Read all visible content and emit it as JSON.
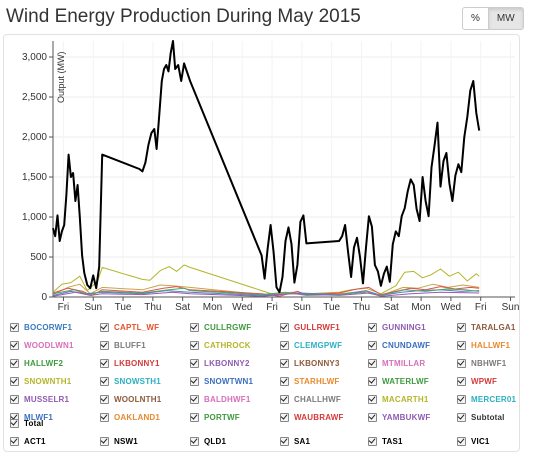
{
  "header": {
    "title": "Wind Energy Production During May 2015",
    "toggle_percent": "%",
    "toggle_mw": "MW"
  },
  "chart_data": {
    "type": "line",
    "ylabel": "Output (MW)",
    "ylim": [
      0,
      3200
    ],
    "yticks": [
      0,
      500,
      1000,
      1500,
      2000,
      2500,
      3000
    ],
    "ytick_labels": [
      "0",
      "500",
      "1,000",
      "1,500",
      "2,000",
      "2,500",
      "3,000"
    ],
    "xlim": [
      0,
      31
    ],
    "xticks": [
      {
        "x": 0.7,
        "label": "Fri"
      },
      {
        "x": 2.7,
        "label": "Sun"
      },
      {
        "x": 4.7,
        "label": "Tue"
      },
      {
        "x": 6.7,
        "label": "Thu"
      },
      {
        "x": 8.7,
        "label": "Sat"
      },
      {
        "x": 10.7,
        "label": "Mon"
      },
      {
        "x": 12.7,
        "label": "Wed"
      },
      {
        "x": 14.7,
        "label": "Fri"
      },
      {
        "x": 16.7,
        "label": "Sun"
      },
      {
        "x": 18.7,
        "label": "Tue"
      },
      {
        "x": 20.7,
        "label": "Thu"
      },
      {
        "x": 22.7,
        "label": "Sat"
      },
      {
        "x": 24.7,
        "label": "Mon"
      },
      {
        "x": 26.7,
        "label": "Wed"
      },
      {
        "x": 28.7,
        "label": "Fri"
      },
      {
        "x": 30.7,
        "label": "Sun"
      }
    ],
    "grid": true,
    "series": [
      {
        "name": "Total",
        "color": "#000000",
        "width": 2,
        "points": [
          [
            0,
            860
          ],
          [
            0.15,
            760
          ],
          [
            0.3,
            1020
          ],
          [
            0.45,
            700
          ],
          [
            0.6,
            820
          ],
          [
            0.75,
            900
          ],
          [
            0.9,
            1280
          ],
          [
            1.05,
            1780
          ],
          [
            1.2,
            1500
          ],
          [
            1.35,
            1550
          ],
          [
            1.5,
            1200
          ],
          [
            1.65,
            1400
          ],
          [
            1.8,
            1000
          ],
          [
            1.95,
            520
          ],
          [
            2.1,
            300
          ],
          [
            2.3,
            150
          ],
          [
            2.5,
            110
          ],
          [
            2.7,
            270
          ],
          [
            2.9,
            110
          ],
          [
            3.1,
            380
          ],
          [
            3.3,
            1780
          ],
          [
            5.8,
            1600
          ],
          [
            6.0,
            1570
          ],
          [
            6.2,
            1680
          ],
          [
            6.4,
            1900
          ],
          [
            6.6,
            2050
          ],
          [
            6.8,
            2100
          ],
          [
            6.95,
            1850
          ],
          [
            7.1,
            2200
          ],
          [
            7.3,
            2700
          ],
          [
            7.45,
            2850
          ],
          [
            7.6,
            2900
          ],
          [
            7.75,
            2820
          ],
          [
            7.9,
            3050
          ],
          [
            8.05,
            3200
          ],
          [
            8.2,
            2850
          ],
          [
            8.4,
            2900
          ],
          [
            8.6,
            2700
          ],
          [
            8.8,
            2920
          ],
          [
            9.2,
            2700
          ],
          [
            14.0,
            520
          ],
          [
            14.2,
            230
          ],
          [
            14.4,
            600
          ],
          [
            14.6,
            900
          ],
          [
            14.8,
            560
          ],
          [
            15.0,
            120
          ],
          [
            15.2,
            60
          ],
          [
            15.4,
            250
          ],
          [
            15.6,
            700
          ],
          [
            15.8,
            870
          ],
          [
            16.0,
            660
          ],
          [
            16.2,
            180
          ],
          [
            16.4,
            400
          ],
          [
            16.6,
            940
          ],
          [
            16.8,
            1020
          ],
          [
            17.0,
            670
          ],
          [
            19.2,
            700
          ],
          [
            19.4,
            760
          ],
          [
            19.6,
            900
          ],
          [
            19.8,
            560
          ],
          [
            20.0,
            250
          ],
          [
            20.2,
            620
          ],
          [
            20.4,
            740
          ],
          [
            20.6,
            500
          ],
          [
            20.8,
            170
          ],
          [
            21.0,
            620
          ],
          [
            21.2,
            1010
          ],
          [
            21.4,
            880
          ],
          [
            21.6,
            400
          ],
          [
            21.8,
            320
          ],
          [
            22.0,
            140
          ],
          [
            22.2,
            290
          ],
          [
            22.4,
            380
          ],
          [
            22.6,
            190
          ],
          [
            22.8,
            660
          ],
          [
            23.0,
            820
          ],
          [
            23.2,
            760
          ],
          [
            23.4,
            1010
          ],
          [
            23.6,
            1110
          ],
          [
            23.8,
            1320
          ],
          [
            24.0,
            1470
          ],
          [
            24.2,
            1400
          ],
          [
            24.4,
            1100
          ],
          [
            24.6,
            950
          ],
          [
            24.8,
            1500
          ],
          [
            25.0,
            1200
          ],
          [
            25.2,
            1010
          ],
          [
            25.4,
            1620
          ],
          [
            25.6,
            1890
          ],
          [
            25.8,
            2180
          ],
          [
            26.0,
            1380
          ],
          [
            26.2,
            1700
          ],
          [
            26.4,
            1800
          ],
          [
            26.6,
            1420
          ],
          [
            26.8,
            1200
          ],
          [
            27.0,
            1520
          ],
          [
            27.2,
            1660
          ],
          [
            27.4,
            1560
          ],
          [
            27.6,
            2000
          ],
          [
            27.8,
            2250
          ],
          [
            28.0,
            2580
          ],
          [
            28.2,
            2700
          ],
          [
            28.4,
            2300
          ],
          [
            28.6,
            2080
          ]
        ]
      },
      {
        "name": "VIC1",
        "color": "#b5b52b",
        "width": 1,
        "points": [
          [
            0,
            60
          ],
          [
            0.6,
            160
          ],
          [
            1.2,
            180
          ],
          [
            1.8,
            260
          ],
          [
            2.3,
            80
          ],
          [
            3.0,
            200
          ],
          [
            3.3,
            370
          ],
          [
            6.0,
            220
          ],
          [
            6.5,
            210
          ],
          [
            7.2,
            330
          ],
          [
            7.8,
            380
          ],
          [
            8.3,
            320
          ],
          [
            8.8,
            400
          ],
          [
            9.2,
            370
          ],
          [
            14.0,
            80
          ],
          [
            15.0,
            20
          ],
          [
            16.0,
            60
          ],
          [
            17.0,
            40
          ],
          [
            19.2,
            60
          ],
          [
            20.0,
            90
          ],
          [
            21.0,
            110
          ],
          [
            22.0,
            40
          ],
          [
            23.0,
            140
          ],
          [
            23.6,
            310
          ],
          [
            24.2,
            320
          ],
          [
            24.8,
            240
          ],
          [
            25.4,
            280
          ],
          [
            26.0,
            350
          ],
          [
            26.6,
            260
          ],
          [
            27.2,
            310
          ],
          [
            27.8,
            200
          ],
          [
            28.4,
            290
          ],
          [
            28.6,
            260
          ]
        ]
      },
      {
        "name": "SA1",
        "color": "#c9a24a",
        "width": 1,
        "points": [
          [
            0,
            30
          ],
          [
            1.0,
            120
          ],
          [
            1.8,
            160
          ],
          [
            2.5,
            40
          ],
          [
            3.3,
            120
          ],
          [
            6.0,
            90
          ],
          [
            7.2,
            150
          ],
          [
            8.0,
            140
          ],
          [
            9.2,
            120
          ],
          [
            14.0,
            30
          ],
          [
            16.0,
            50
          ],
          [
            17.0,
            30
          ],
          [
            19.2,
            40
          ],
          [
            21.0,
            70
          ],
          [
            22.0,
            20
          ],
          [
            23.5,
            120
          ],
          [
            24.5,
            110
          ],
          [
            25.5,
            160
          ],
          [
            26.5,
            120
          ],
          [
            27.5,
            150
          ],
          [
            28.6,
            120
          ]
        ]
      },
      {
        "name": "NSW1",
        "color": "#e05050",
        "width": 1,
        "points": [
          [
            0,
            50
          ],
          [
            1.0,
            110
          ],
          [
            2.0,
            70
          ],
          [
            2.6,
            20
          ],
          [
            3.3,
            90
          ],
          [
            6.0,
            60
          ],
          [
            7.4,
            110
          ],
          [
            8.3,
            130
          ],
          [
            9.2,
            90
          ],
          [
            14.0,
            40
          ],
          [
            15.2,
            10
          ],
          [
            16.4,
            70
          ],
          [
            17.0,
            30
          ],
          [
            19.2,
            50
          ],
          [
            20.4,
            100
          ],
          [
            21.2,
            120
          ],
          [
            22.0,
            30
          ],
          [
            23.0,
            70
          ],
          [
            24.0,
            110
          ],
          [
            25.0,
            90
          ],
          [
            26.0,
            130
          ],
          [
            27.0,
            100
          ],
          [
            28.0,
            120
          ],
          [
            28.6,
            110
          ]
        ]
      },
      {
        "name": "QLD1",
        "color": "#5a7fc0",
        "width": 1,
        "points": [
          [
            0,
            20
          ],
          [
            1.2,
            70
          ],
          [
            2.2,
            40
          ],
          [
            3.3,
            60
          ],
          [
            6.0,
            40
          ],
          [
            7.6,
            80
          ],
          [
            9.2,
            60
          ],
          [
            14.0,
            20
          ],
          [
            16.6,
            50
          ],
          [
            19.2,
            30
          ],
          [
            21.0,
            80
          ],
          [
            22.0,
            20
          ],
          [
            23.4,
            60
          ],
          [
            24.6,
            80
          ],
          [
            26.0,
            90
          ],
          [
            27.4,
            70
          ],
          [
            28.6,
            80
          ]
        ]
      },
      {
        "name": "TAS1",
        "color": "#4aa860",
        "width": 1,
        "points": [
          [
            0,
            40
          ],
          [
            1.4,
            90
          ],
          [
            2.4,
            30
          ],
          [
            3.3,
            70
          ],
          [
            6.0,
            50
          ],
          [
            7.8,
            90
          ],
          [
            8.8,
            110
          ],
          [
            9.2,
            80
          ],
          [
            14.0,
            30
          ],
          [
            15.6,
            60
          ],
          [
            17.0,
            20
          ],
          [
            19.2,
            30
          ],
          [
            20.8,
            60
          ],
          [
            22.0,
            20
          ],
          [
            23.6,
            90
          ],
          [
            25.0,
            70
          ],
          [
            26.4,
            100
          ],
          [
            27.6,
            90
          ],
          [
            28.6,
            70
          ]
        ]
      },
      {
        "name": "ACT1",
        "color": "#9b59b6",
        "width": 1,
        "points": [
          [
            0,
            10
          ],
          [
            1.5,
            60
          ],
          [
            2.5,
            20
          ],
          [
            3.3,
            40
          ],
          [
            6.0,
            30
          ],
          [
            8.0,
            60
          ],
          [
            9.2,
            40
          ],
          [
            14.0,
            10
          ],
          [
            16.0,
            40
          ],
          [
            19.2,
            20
          ],
          [
            21.2,
            50
          ],
          [
            22.0,
            10
          ],
          [
            24.0,
            40
          ],
          [
            26.0,
            60
          ],
          [
            28.6,
            50
          ]
        ]
      }
    ]
  },
  "legend": {
    "items": [
      {
        "label": "BOCORWF1",
        "color": "#3a7bbf"
      },
      {
        "label": "CAPTL_WF",
        "color": "#e0532a"
      },
      {
        "label": "CULLRGWF",
        "color": "#3e9a3e"
      },
      {
        "label": "GULLRWF1",
        "color": "#d43a3a"
      },
      {
        "label": "GUNNING1",
        "color": "#8e5cb0"
      },
      {
        "label": "TARALGA1",
        "color": "#8c5a3c"
      },
      {
        "label": "WOODLWN1",
        "color": "#d670b8"
      },
      {
        "label": "BLUFF1",
        "color": "#7a7a7a"
      },
      {
        "label": "CATHROCK",
        "color": "#b5b52b"
      },
      {
        "label": "CLEMGPWF",
        "color": "#2bb0c2"
      },
      {
        "label": "CNUNDAWF",
        "color": "#3a6fbf"
      },
      {
        "label": "HALLWF1",
        "color": "#e8892e"
      },
      {
        "label": "HALLWF2",
        "color": "#3e9a3e"
      },
      {
        "label": "LKBONNY1",
        "color": "#d43a3a"
      },
      {
        "label": "LKBONNY2",
        "color": "#8e5cb0"
      },
      {
        "label": "LKBONNY3",
        "color": "#8c5a3c"
      },
      {
        "label": "MTMILLAR",
        "color": "#d670b8"
      },
      {
        "label": "NBHWF1",
        "color": "#7a7a7a"
      },
      {
        "label": "SNOWNTH1",
        "color": "#b5b52b"
      },
      {
        "label": "SNOWSTH1",
        "color": "#2bb0c2"
      },
      {
        "label": "SNOWTWN1",
        "color": "#3a6fbf"
      },
      {
        "label": "STARHLWF",
        "color": "#e8892e"
      },
      {
        "label": "WATERLWF",
        "color": "#3e9a3e"
      },
      {
        "label": "WPWF",
        "color": "#d43a3a"
      },
      {
        "label": "MUSSELR1",
        "color": "#8e5cb0"
      },
      {
        "label": "WOOLNTH1",
        "color": "#8c5a3c"
      },
      {
        "label": "BALDHWF1",
        "color": "#d670b8"
      },
      {
        "label": "CHALLHWF",
        "color": "#7a7a7a"
      },
      {
        "label": "MACARTH1",
        "color": "#b5b52b"
      },
      {
        "label": "MERCER01",
        "color": "#2bb0c2"
      },
      {
        "label": "MLWF1",
        "color": "#3a6fbf"
      },
      {
        "label": "OAKLAND1",
        "color": "#e8892e"
      },
      {
        "label": "PORTWF",
        "color": "#3e9a3e"
      },
      {
        "label": "WAUBRAWF",
        "color": "#d43a3a"
      },
      {
        "label": "YAMBUKWF",
        "color": "#8e5cb0"
      },
      {
        "label": "Subtotal",
        "color": "#333333"
      },
      {
        "label": "Total",
        "color": "#000000"
      },
      {
        "label": "ACT1",
        "color": "#000000"
      },
      {
        "label": "NSW1",
        "color": "#000000"
      },
      {
        "label": "QLD1",
        "color": "#000000"
      },
      {
        "label": "SA1",
        "color": "#000000"
      },
      {
        "label": "TAS1",
        "color": "#000000"
      },
      {
        "label": "VIC1",
        "color": "#000000"
      }
    ]
  }
}
